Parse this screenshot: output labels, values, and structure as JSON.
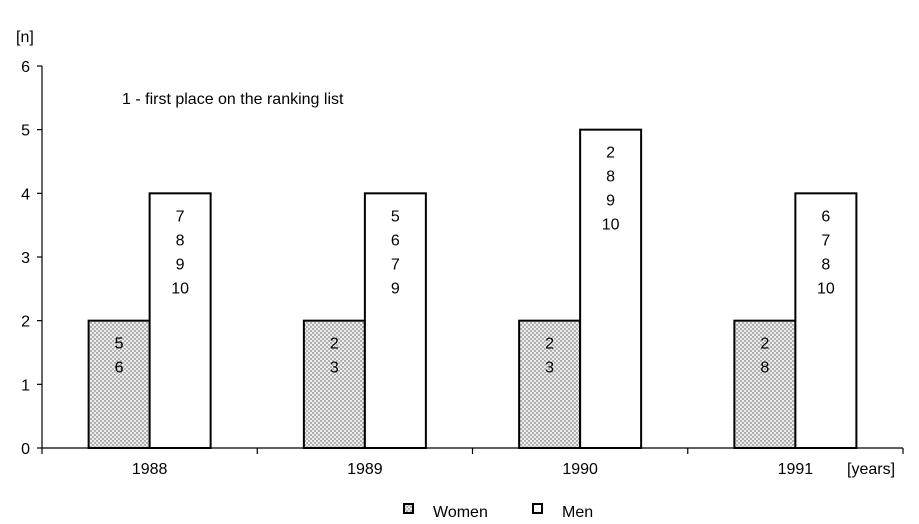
{
  "chart_data": {
    "type": "bar",
    "title": "",
    "ylabel": "[n]",
    "xlabel": "[years]",
    "annotation": "1 - first place on the ranking list",
    "categories": [
      "1988",
      "1989",
      "1990",
      "1991"
    ],
    "ylim": [
      0,
      6
    ],
    "yticks": [
      "0",
      "1",
      "2",
      "3",
      "4",
      "5",
      "6"
    ],
    "grid": false,
    "legend_position": "bottom-center",
    "series": [
      {
        "name": "Women",
        "pattern": "dotted",
        "fill_color": "#e6e6e6",
        "values": [
          2,
          2,
          2,
          2
        ],
        "bar_labels": [
          [
            "5",
            "6"
          ],
          [
            "2",
            "3"
          ],
          [
            "2",
            "3"
          ],
          [
            "2",
            "8"
          ]
        ]
      },
      {
        "name": "Men",
        "pattern": "solid",
        "fill_color": "#ffffff",
        "values": [
          4,
          4,
          5,
          4
        ],
        "bar_labels": [
          [
            "7",
            "8",
            "9",
            "10"
          ],
          [
            "5",
            "6",
            "7",
            "9"
          ],
          [
            "2",
            "8",
            "9",
            "10"
          ],
          [
            "6",
            "7",
            "8",
            "10"
          ]
        ]
      }
    ]
  }
}
